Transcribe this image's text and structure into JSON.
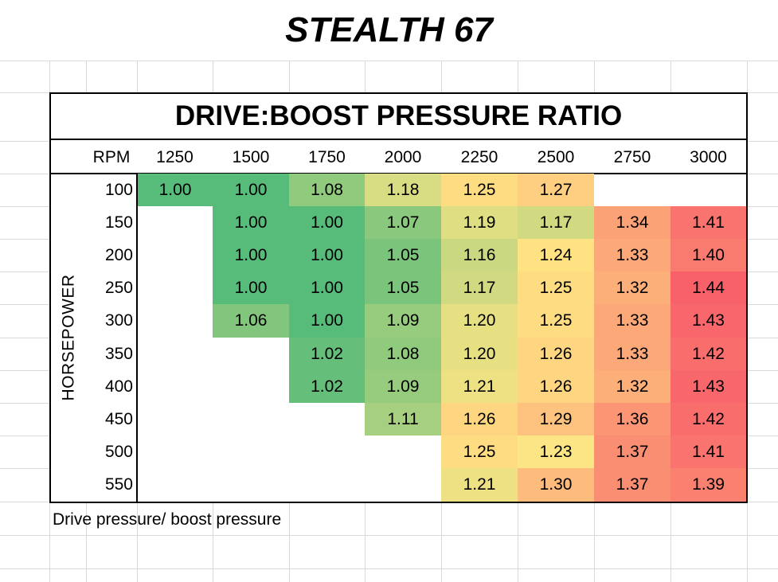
{
  "sheet_title": "STEALTH 67",
  "note": "Drive pressure/ boost pressure",
  "chart_data": {
    "type": "heatmap",
    "title": "DRIVE:BOOST PRESSURE RATIO",
    "x_header": "RPM",
    "y_label": "HORSEPOWER",
    "x": [
      "1250",
      "1500",
      "1750",
      "2000",
      "2250",
      "2500",
      "2750",
      "3000"
    ],
    "y": [
      "100",
      "150",
      "200",
      "250",
      "300",
      "350",
      "400",
      "450",
      "500",
      "550"
    ],
    "values": [
      [
        1.0,
        1.0,
        1.08,
        1.18,
        1.25,
        1.27,
        null,
        null
      ],
      [
        null,
        1.0,
        1.0,
        1.07,
        1.19,
        1.17,
        1.34,
        1.41
      ],
      [
        null,
        1.0,
        1.0,
        1.05,
        1.16,
        1.24,
        1.33,
        1.4
      ],
      [
        null,
        1.0,
        1.0,
        1.05,
        1.17,
        1.25,
        1.32,
        1.44
      ],
      [
        null,
        1.06,
        1.0,
        1.09,
        1.2,
        1.25,
        1.33,
        1.43
      ],
      [
        null,
        null,
        1.02,
        1.08,
        1.2,
        1.26,
        1.33,
        1.42
      ],
      [
        null,
        null,
        1.02,
        1.09,
        1.21,
        1.26,
        1.32,
        1.43
      ],
      [
        null,
        null,
        null,
        1.11,
        1.26,
        1.29,
        1.36,
        1.42
      ],
      [
        null,
        null,
        null,
        null,
        1.25,
        1.23,
        1.37,
        1.41
      ],
      [
        null,
        null,
        null,
        null,
        1.21,
        1.3,
        1.37,
        1.39
      ]
    ],
    "color_scale": {
      "min": 1.0,
      "mid": 1.235,
      "max": 1.44,
      "min_color": "#57BB7A",
      "mid_color": "#FFE684",
      "max_color": "#F8616A"
    }
  }
}
